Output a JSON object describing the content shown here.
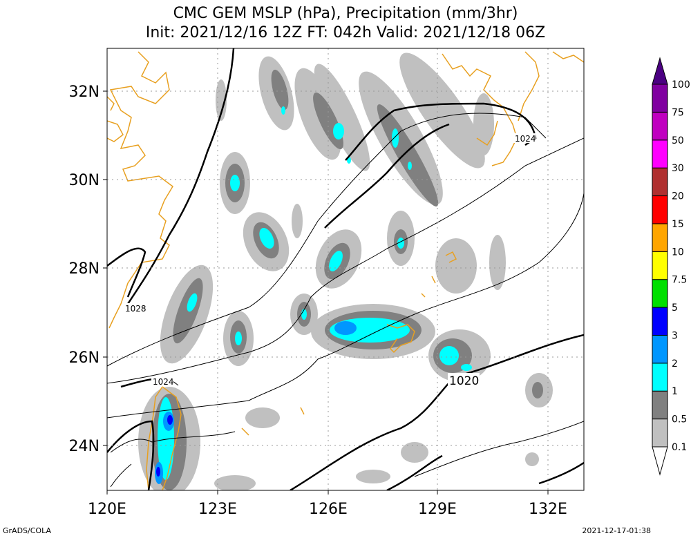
{
  "title_line1": "CMC GEM MSLP (hPa), Precipitation (mm/3hr)",
  "title_line2": "Init: 2021/12/16 12Z  FT: 042h  Valid: 2021/12/18 06Z",
  "footer_left": "GrADS/COLA",
  "footer_right": "2021-12-17-01:38",
  "lat_labels": [
    "32N",
    "30N",
    "28N",
    "26N",
    "24N"
  ],
  "lon_labels": [
    "120E",
    "123E",
    "126E",
    "129E",
    "132E"
  ],
  "isobar_labels": [
    "1028",
    "1024",
    "1024",
    "1020"
  ],
  "colorbar": {
    "levels": [
      "0.1",
      "0.5",
      "1",
      "2",
      "3",
      "5",
      "7.5",
      "10",
      "15",
      "20",
      "30",
      "50",
      "75",
      "100"
    ],
    "colors": [
      "#ffffff",
      "#c0c0c0",
      "#808080",
      "#00ffff",
      "#0096ff",
      "#0000ff",
      "#00e000",
      "#ffff00",
      "#ffa500",
      "#ff0000",
      "#b03030",
      "#ff00ff",
      "#c000c0",
      "#8000a0",
      "#4b0082"
    ]
  },
  "colors": {
    "coastline": "#e8a020",
    "isobar": "#000000",
    "grid": "#999999"
  }
}
